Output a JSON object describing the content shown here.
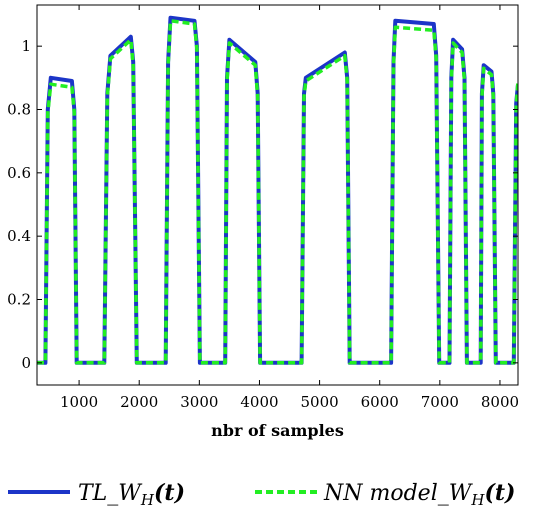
{
  "chart_data": {
    "type": "line",
    "xlabel": "nbr of samples",
    "ylabel": "",
    "xlim": [
      300,
      8300
    ],
    "ylim": [
      -0.07,
      1.13
    ],
    "xticks": [
      1000,
      2000,
      3000,
      4000,
      5000,
      6000,
      7000,
      8000
    ],
    "yticks": [
      0,
      0.2,
      0.4,
      0.6,
      0.8,
      1
    ],
    "xtick_labels": [
      "1000",
      "2000",
      "3000",
      "4000",
      "5000",
      "6000",
      "7000",
      "8000"
    ],
    "ytick_labels": [
      "0",
      "0.2",
      "0.4",
      "0.6",
      "0.8",
      "1"
    ],
    "grid": false,
    "legend_position": "bottom",
    "series": [
      {
        "name_main": "TL_W",
        "name_sub": "H",
        "name_tail": "(t)",
        "color": "#1c35c8",
        "style": "solid",
        "x": [
          300,
          440,
          480,
          530,
          880,
          920,
          960,
          1420,
          1470,
          1520,
          1860,
          1900,
          1960,
          2440,
          2480,
          2520,
          2920,
          2960,
          3010,
          3430,
          3460,
          3500,
          3930,
          3970,
          4010,
          4700,
          4740,
          4770,
          5420,
          5460,
          5500,
          6190,
          6230,
          6260,
          6900,
          6940,
          6990,
          7160,
          7190,
          7220,
          7370,
          7410,
          7450,
          7680,
          7700,
          7730,
          7860,
          7890,
          7930,
          8230,
          8270,
          8300
        ],
        "y": [
          0,
          0,
          0.8,
          0.9,
          0.89,
          0.8,
          0,
          0,
          0.85,
          0.97,
          1.03,
          0.95,
          0,
          0,
          0.95,
          1.09,
          1.08,
          1.0,
          0,
          0,
          0.9,
          1.02,
          0.95,
          0.85,
          0,
          0,
          0.85,
          0.9,
          0.98,
          0.9,
          0,
          0,
          0.95,
          1.08,
          1.07,
          0.97,
          0,
          0,
          0.9,
          1.02,
          0.99,
          0.9,
          0,
          0,
          0.85,
          0.94,
          0.92,
          0.85,
          0,
          0,
          0.82,
          0.88
        ]
      },
      {
        "name_main": "NN model_W",
        "name_sub": "H",
        "name_tail": "(t)",
        "color": "#22ee22",
        "style": "dashed",
        "x": [
          300,
          440,
          480,
          530,
          880,
          920,
          960,
          1420,
          1470,
          1520,
          1860,
          1900,
          1960,
          2440,
          2480,
          2520,
          2920,
          2960,
          3010,
          3430,
          3460,
          3500,
          3930,
          3970,
          4010,
          4700,
          4740,
          4770,
          5420,
          5460,
          5500,
          6190,
          6230,
          6260,
          6900,
          6940,
          6990,
          7160,
          7190,
          7220,
          7370,
          7410,
          7450,
          7680,
          7700,
          7730,
          7860,
          7890,
          7930,
          8230,
          8270,
          8300
        ],
        "y": [
          0,
          0,
          0.79,
          0.88,
          0.87,
          0.79,
          0,
          0,
          0.84,
          0.96,
          1.02,
          0.94,
          0,
          0,
          0.94,
          1.08,
          1.07,
          0.99,
          0,
          0,
          0.89,
          1.01,
          0.94,
          0.84,
          0,
          0,
          0.84,
          0.89,
          0.97,
          0.89,
          0,
          0,
          0.94,
          1.06,
          1.05,
          0.96,
          0,
          0,
          0.89,
          1.01,
          0.98,
          0.89,
          0,
          0,
          0.84,
          0.93,
          0.91,
          0.84,
          0,
          0,
          0.81,
          0.89
        ]
      }
    ]
  }
}
